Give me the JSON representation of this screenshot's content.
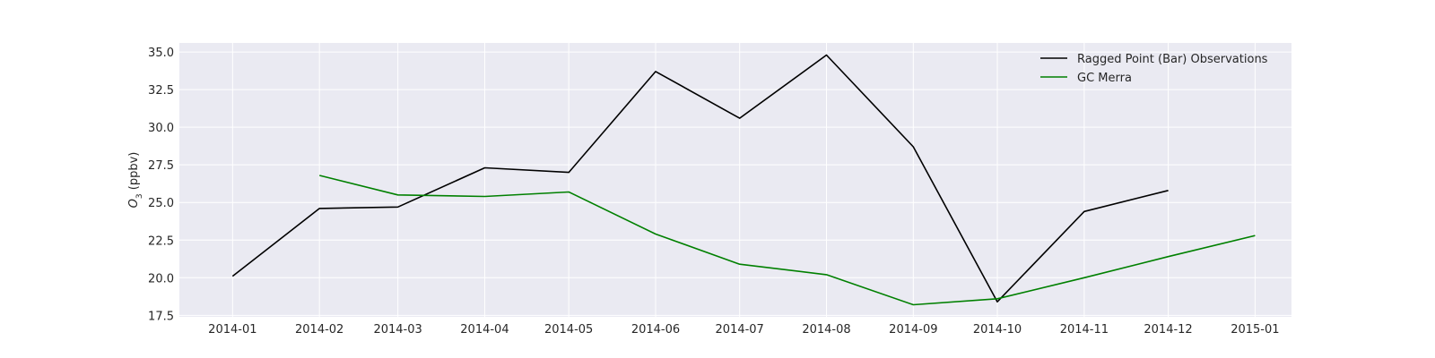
{
  "chart_data": {
    "type": "line",
    "title": "",
    "xlabel": "",
    "ylabel_var": "O",
    "ylabel_sub": "3",
    "ylabel_unit": " (ppbv)",
    "x_ticks": [
      "2014-01",
      "2014-02",
      "2014-03",
      "2014-04",
      "2014-05",
      "2014-06",
      "2014-07",
      "2014-08",
      "2014-09",
      "2014-10",
      "2014-11",
      "2014-12",
      "2015-01"
    ],
    "x_range": [
      "2013-12-13",
      "2015-01-14"
    ],
    "ylim": [
      17.4,
      35.6
    ],
    "y_ticks": [
      17.5,
      20.0,
      22.5,
      25.0,
      27.5,
      30.0,
      32.5,
      35.0
    ],
    "grid": true,
    "legend_position": "top-right",
    "series": [
      {
        "name": "Ragged Point (Bar) Observations",
        "color": "#000000",
        "x": [
          "2014-01-01",
          "2014-02-01",
          "2014-03-01",
          "2014-04-01",
          "2014-05-01",
          "2014-06-01",
          "2014-07-01",
          "2014-08-01",
          "2014-09-01",
          "2014-10-01",
          "2014-11-01",
          "2014-12-01"
        ],
        "y": [
          20.1,
          24.6,
          24.7,
          27.3,
          27.0,
          33.7,
          30.6,
          34.8,
          28.7,
          18.4,
          24.4,
          25.8
        ]
      },
      {
        "name": "GC Merra",
        "color": "#008000",
        "x": [
          "2014-02-01",
          "2014-03-01",
          "2014-04-01",
          "2014-05-01",
          "2014-06-01",
          "2014-07-01",
          "2014-08-01",
          "2014-09-01",
          "2014-10-01",
          "2014-11-01",
          "2014-12-01",
          "2015-01-01"
        ],
        "y": [
          26.8,
          25.5,
          25.4,
          25.7,
          22.9,
          20.9,
          20.2,
          18.2,
          18.6,
          20.0,
          21.4,
          22.8
        ]
      }
    ]
  }
}
